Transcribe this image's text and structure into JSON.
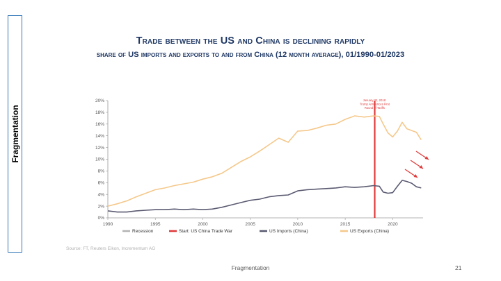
{
  "sidebar": {
    "label": "Fragmentation"
  },
  "title": "Trade between the US and China is declining rapidly",
  "subtitle": "share of US imports and exports to and from China (12 month average), 01/1990-01/2023",
  "source": "Source: FT, Reuters Eikon, Incrementum AG",
  "footer": {
    "text": "Fragmentation",
    "page_number": "21"
  },
  "chart_data": {
    "type": "line",
    "xlim": [
      1990,
      2023.2
    ],
    "ylim": [
      0,
      20
    ],
    "x_ticks": [
      1990,
      1995,
      2000,
      2005,
      2010,
      2015,
      2020
    ],
    "x_tick_labels": [
      "1990",
      "1995",
      "2000",
      "2005",
      "2010",
      "2015",
      "2020"
    ],
    "y_ticks": [
      0,
      2,
      4,
      6,
      8,
      10,
      12,
      14,
      16,
      18,
      20
    ],
    "y_tick_labels": [
      "0%",
      "2%",
      "4%",
      "6%",
      "8%",
      "10%",
      "12%",
      "14%",
      "16%",
      "18%",
      "20%"
    ],
    "grid": false,
    "legend": {
      "placement": "bottom",
      "entries": [
        {
          "label": "Recession",
          "color": "#b4b4b4"
        },
        {
          "label": "Start: US China Trade War",
          "color": "#e03b3b"
        },
        {
          "label": "US Imports (China)",
          "color": "#5a5a72"
        },
        {
          "label": "US Exports (China)",
          "color": "#f5c88a"
        }
      ]
    },
    "annotation": {
      "x": 2018.1,
      "lines": [
        "January 22, 2018:",
        "Trump Announces First",
        "Round of Tariffs"
      ],
      "color": "#e03b3b"
    },
    "trend_arrows": {
      "count": 3,
      "direction": "down",
      "color": "#e03b3b"
    },
    "series": [
      {
        "name": "US Imports (China)",
        "color": "#5a5a72",
        "points": [
          [
            1990,
            1.2
          ],
          [
            1991,
            1.0
          ],
          [
            1992,
            1.0
          ],
          [
            1993,
            1.2
          ],
          [
            1994,
            1.3
          ],
          [
            1995,
            1.4
          ],
          [
            1996,
            1.4
          ],
          [
            1997,
            1.5
          ],
          [
            1998,
            1.4
          ],
          [
            1999,
            1.5
          ],
          [
            2000,
            1.4
          ],
          [
            2001,
            1.5
          ],
          [
            2002,
            1.8
          ],
          [
            2003,
            2.2
          ],
          [
            2004,
            2.6
          ],
          [
            2005,
            3.0
          ],
          [
            2006,
            3.2
          ],
          [
            2007,
            3.6
          ],
          [
            2008,
            3.8
          ],
          [
            2009,
            3.9
          ],
          [
            2010,
            4.6
          ],
          [
            2011,
            4.8
          ],
          [
            2012,
            4.9
          ],
          [
            2013,
            5.0
          ],
          [
            2014,
            5.1
          ],
          [
            2015,
            5.3
          ],
          [
            2016,
            5.2
          ],
          [
            2017,
            5.3
          ],
          [
            2018,
            5.5
          ],
          [
            2018.6,
            5.4
          ],
          [
            2019,
            4.4
          ],
          [
            2019.5,
            4.2
          ],
          [
            2020,
            4.3
          ],
          [
            2020.5,
            5.4
          ],
          [
            2021,
            6.4
          ],
          [
            2021.5,
            6.2
          ],
          [
            2022,
            5.9
          ],
          [
            2022.5,
            5.3
          ],
          [
            2023,
            5.1
          ]
        ]
      },
      {
        "name": "US Exports (China)",
        "color": "#f5c88a",
        "points": [
          [
            1990,
            2.0
          ],
          [
            1991,
            2.4
          ],
          [
            1992,
            2.9
          ],
          [
            1993,
            3.6
          ],
          [
            1994,
            4.2
          ],
          [
            1995,
            4.8
          ],
          [
            1996,
            5.1
          ],
          [
            1997,
            5.5
          ],
          [
            1998,
            5.8
          ],
          [
            1999,
            6.1
          ],
          [
            2000,
            6.6
          ],
          [
            2001,
            7.0
          ],
          [
            2002,
            7.6
          ],
          [
            2003,
            8.6
          ],
          [
            2004,
            9.6
          ],
          [
            2005,
            10.4
          ],
          [
            2006,
            11.4
          ],
          [
            2007,
            12.5
          ],
          [
            2008,
            13.6
          ],
          [
            2009,
            12.9
          ],
          [
            2010,
            14.8
          ],
          [
            2011,
            14.9
          ],
          [
            2012,
            15.3
          ],
          [
            2013,
            15.8
          ],
          [
            2014,
            16.0
          ],
          [
            2015,
            16.8
          ],
          [
            2016,
            17.4
          ],
          [
            2017,
            17.2
          ],
          [
            2018,
            17.4
          ],
          [
            2018.6,
            17.3
          ],
          [
            2019,
            16.0
          ],
          [
            2019.5,
            14.5
          ],
          [
            2020,
            13.8
          ],
          [
            2020.5,
            14.8
          ],
          [
            2021,
            16.3
          ],
          [
            2021.5,
            15.2
          ],
          [
            2022,
            14.9
          ],
          [
            2022.5,
            14.6
          ],
          [
            2023,
            13.3
          ]
        ]
      }
    ]
  }
}
